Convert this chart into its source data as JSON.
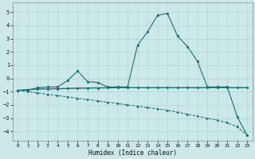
{
  "xlabel": "Humidex (Indice chaleur)",
  "xlim": [
    -0.5,
    23.5
  ],
  "ylim": [
    -4.7,
    5.7
  ],
  "xticks": [
    0,
    1,
    2,
    3,
    4,
    5,
    6,
    7,
    8,
    9,
    10,
    11,
    12,
    13,
    14,
    15,
    16,
    17,
    18,
    19,
    20,
    21,
    22,
    23
  ],
  "yticks": [
    -4,
    -3,
    -2,
    -1,
    0,
    1,
    2,
    3,
    4,
    5
  ],
  "background_color": "#cce8e8",
  "grid_color": "#b0d4d4",
  "line_color": "#1a7070",
  "line1_x": [
    0,
    1,
    2,
    3,
    4,
    5,
    6,
    7,
    8,
    9,
    10,
    11,
    12,
    13,
    14,
    15,
    16,
    17,
    18,
    19,
    20,
    21,
    22,
    23
  ],
  "line1_y": [
    -0.9,
    -0.9,
    -0.7,
    -0.65,
    -0.65,
    -0.15,
    0.55,
    -0.25,
    -0.3,
    -0.65,
    -0.65,
    -0.65,
    2.5,
    3.5,
    4.75,
    4.9,
    3.2,
    2.4,
    1.3,
    -0.65,
    -0.65,
    -0.65,
    -2.9,
    -4.3
  ],
  "line2_x": [
    0,
    1,
    2,
    3,
    4,
    5,
    6,
    7,
    8,
    9,
    10,
    11,
    12,
    13,
    14,
    15,
    16,
    17,
    18,
    19,
    20,
    21,
    22,
    23
  ],
  "line2_y": [
    -0.9,
    -0.85,
    -0.8,
    -0.8,
    -0.78,
    -0.76,
    -0.74,
    -0.73,
    -0.72,
    -0.71,
    -0.7,
    -0.7,
    -0.7,
    -0.7,
    -0.7,
    -0.7,
    -0.7,
    -0.7,
    -0.7,
    -0.7,
    -0.7,
    -0.7,
    -0.7,
    -0.7
  ],
  "line3_x": [
    0,
    1,
    2,
    3,
    4,
    5,
    6,
    7,
    8,
    9,
    10,
    11,
    12,
    13,
    14,
    15,
    16,
    17,
    18,
    19,
    20,
    21,
    22,
    23
  ],
  "line3_y": [
    -0.9,
    -1.0,
    -1.1,
    -1.2,
    -1.3,
    -1.4,
    -1.5,
    -1.6,
    -1.7,
    -1.8,
    -1.9,
    -2.0,
    -2.1,
    -2.2,
    -2.3,
    -2.4,
    -2.55,
    -2.7,
    -2.85,
    -3.0,
    -3.15,
    -3.35,
    -3.65,
    -4.3
  ]
}
